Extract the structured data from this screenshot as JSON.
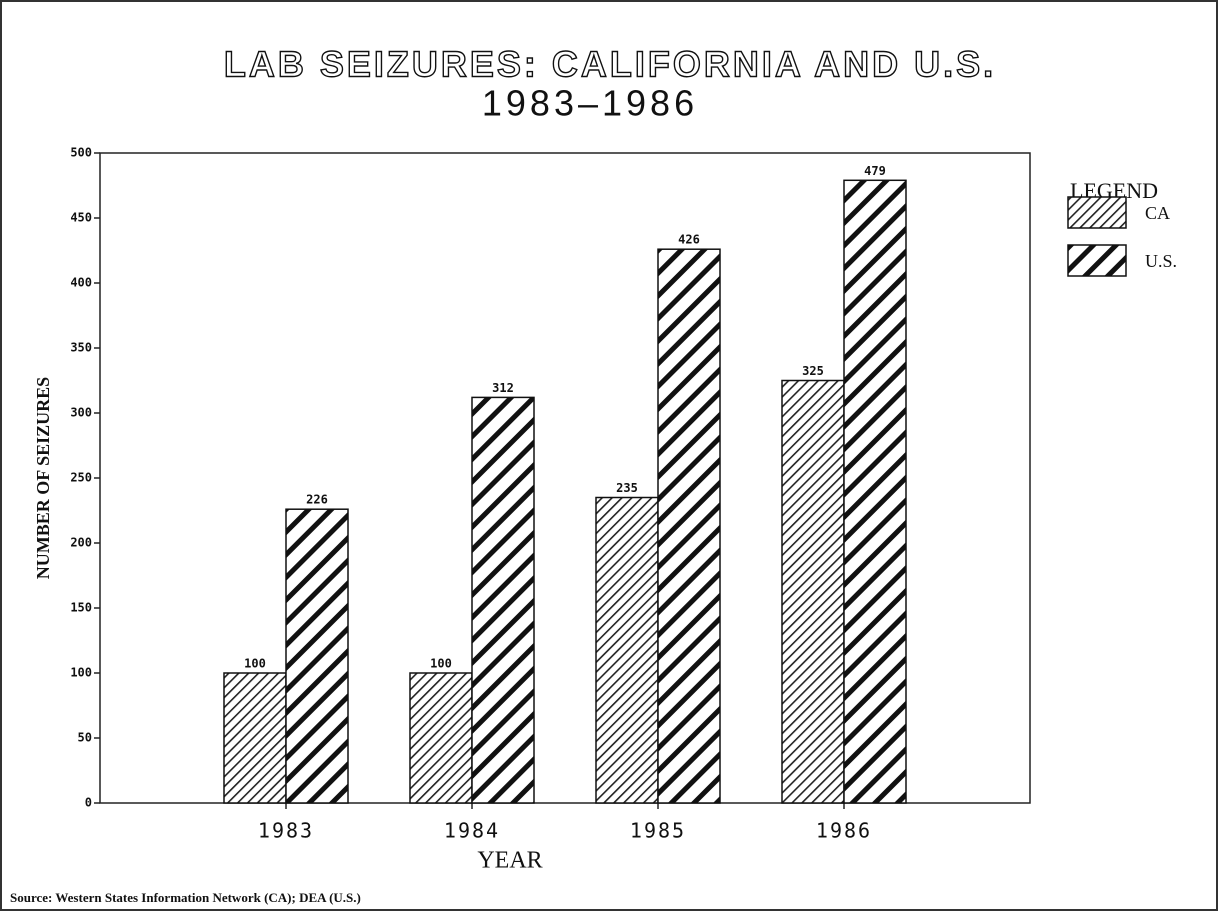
{
  "chart_data": {
    "type": "bar",
    "title": "LAB SEIZURES:  CALIFORNIA AND U.S.",
    "subtitle": "1983–1986",
    "x_label": "YEAR",
    "y_label": "NUMBER OF SEIZURES",
    "legend_title": "LEGEND",
    "source": "Source:  Western States Information Network (CA);  DEA (U.S.)",
    "categories": [
      "1983",
      "1984",
      "1985",
      "1986"
    ],
    "series": [
      {
        "name": "CA",
        "color": "#222222",
        "values": [
          100,
          100,
          235,
          325
        ]
      },
      {
        "name": "U.S.",
        "color": "#111111",
        "values": [
          226,
          312,
          426,
          479
        ]
      }
    ],
    "ylim": [
      0,
      500
    ],
    "yticks": [
      0,
      50,
      100,
      150,
      200,
      250,
      300,
      350,
      400,
      450,
      500
    ],
    "legend": "right"
  }
}
